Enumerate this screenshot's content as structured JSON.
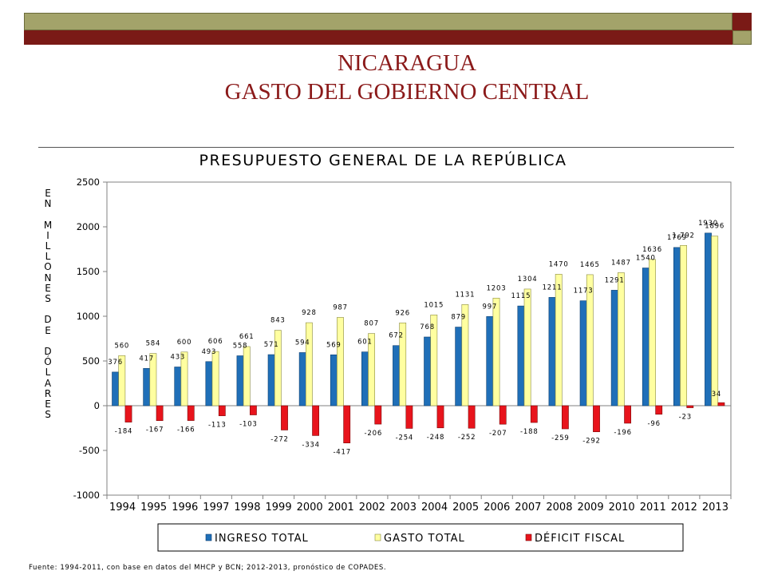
{
  "slide": {
    "title_line1": "NICARAGUA",
    "title_line2": "GASTO DEL GOBIERNO CENTRAL",
    "colors": {
      "olive": "#a3a36a",
      "maroon": "#7a1a16",
      "title": "#8b1a1a"
    }
  },
  "chart_data": {
    "type": "bar",
    "title": "PRESUPUESTO GENERAL DE LA REPÚBLICA",
    "ylabel": "EN MILLONES DE DÓLARES",
    "xlabel": "",
    "ylim": [
      -1000,
      2500
    ],
    "yticks": [
      2500,
      2000,
      1500,
      1000,
      500,
      0,
      -500,
      -1000
    ],
    "grid": false,
    "legend_position": "bottom",
    "categories": [
      "1994",
      "1995",
      "1996",
      "1997",
      "1998",
      "1999",
      "2000",
      "2001",
      "2002",
      "2003",
      "2004",
      "2005",
      "2006",
      "2007",
      "2008",
      "2009",
      "2010",
      "2011",
      "2012",
      "2013"
    ],
    "series": [
      {
        "name": "INGRESO TOTAL",
        "color": "#1f6fb8",
        "values": [
          376,
          417,
          433,
          493,
          558,
          571,
          594,
          569,
          601,
          672,
          768,
          879,
          997,
          1115,
          1211,
          1173,
          1291,
          1540,
          1769,
          1930
        ],
        "labels": [
          "376",
          "417",
          "433",
          "493",
          "558",
          "571",
          "594",
          "569",
          "601",
          "672",
          "768",
          "879",
          "997",
          "1115",
          "1211",
          "1173",
          "1291",
          "1540",
          "1769",
          "1930"
        ]
      },
      {
        "name": "GASTO TOTAL",
        "color": "#ffffa0",
        "values": [
          560,
          584,
          600,
          606,
          661,
          843,
          928,
          987,
          807,
          926,
          1015,
          1131,
          1203,
          1304,
          1470,
          1465,
          1487,
          1636,
          1792,
          1896
        ],
        "labels": [
          "560",
          "584",
          "600",
          "606",
          "661",
          "843",
          "928",
          "987",
          "807",
          "926",
          "1015",
          "1131",
          "1203",
          "1304",
          "1470",
          "1465",
          "1487",
          "1636",
          "1,792",
          "1896"
        ]
      },
      {
        "name": "DÉFICIT FISCAL",
        "color": "#e8141c",
        "values": [
          -184,
          -167,
          -166,
          -113,
          -103,
          -272,
          -334,
          -417,
          -206,
          -254,
          -248,
          -252,
          -207,
          -188,
          -259,
          -292,
          -196,
          -96,
          -23,
          34
        ],
        "labels": [
          "-184",
          "-167",
          "-166",
          "-113",
          "-103",
          "-272",
          "-334",
          "-417",
          "-206",
          "-254",
          "-248",
          "-252",
          "-207",
          "-188",
          "-259",
          "-292",
          "-196",
          "-96",
          "-23",
          "34"
        ]
      }
    ]
  },
  "source": "Fuente:  1994-2011, con base en datos del MHCP y BCN; 2012-2013, pronóstico de COPADES."
}
